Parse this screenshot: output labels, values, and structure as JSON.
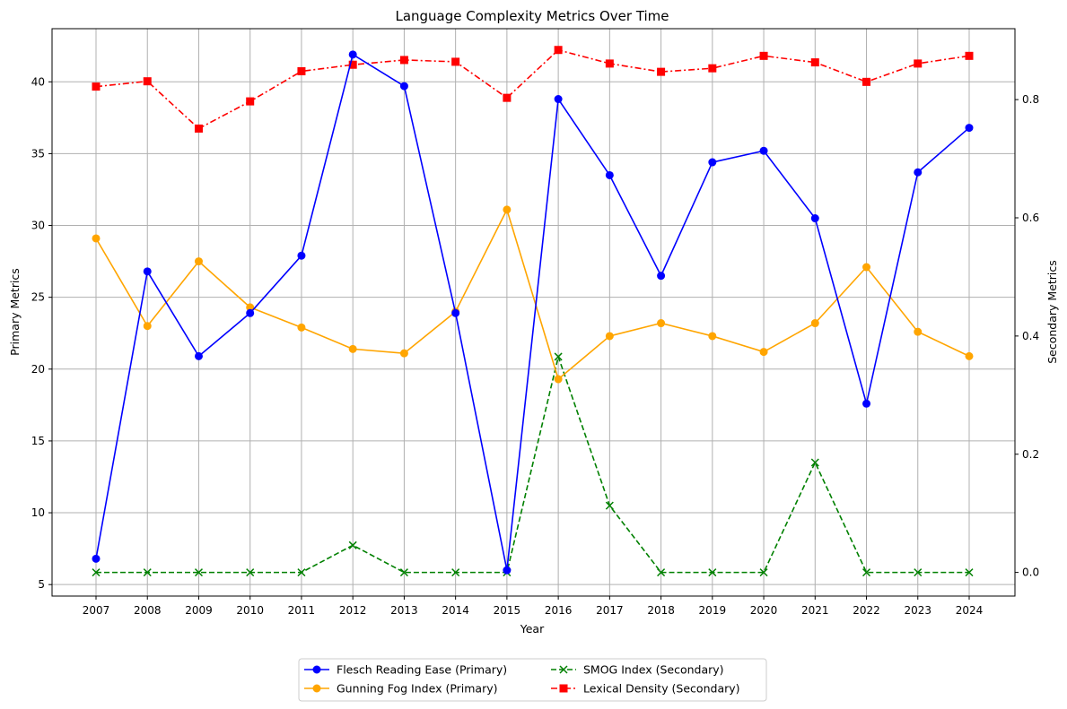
{
  "chart_data": {
    "type": "line",
    "title": "Language Complexity Metrics Over Time",
    "xlabel": "Year",
    "ylabel_left": "Primary Metrics",
    "ylabel_right": "Secondary Metrics",
    "x": [
      "2007",
      "2008",
      "2009",
      "2010",
      "2011",
      "2012",
      "2013",
      "2014",
      "2015",
      "2016",
      "2017",
      "2018",
      "2019",
      "2020",
      "2021",
      "2022",
      "2023",
      "2024"
    ],
    "ylim_left": [
      4.2,
      43.7
    ],
    "ylim_right": [
      -0.04,
      0.92
    ],
    "yticks_left": [
      "5",
      "10",
      "15",
      "20",
      "25",
      "30",
      "35",
      "40"
    ],
    "yticks_right": [
      "0.0",
      "0.2",
      "0.4",
      "0.6",
      "0.8"
    ],
    "grid": true,
    "legend_placement": "bottom-center",
    "series": [
      {
        "name": "Flesch Reading Ease (Primary)",
        "axis": "left",
        "color": "#0000ff",
        "marker": "circle",
        "line_style": "solid",
        "values": [
          6.8,
          26.8,
          20.9,
          23.9,
          27.9,
          41.9,
          39.7,
          23.9,
          6.0,
          38.8,
          33.5,
          26.5,
          34.4,
          35.2,
          30.5,
          17.6,
          33.7,
          36.8
        ]
      },
      {
        "name": "Gunning Fog Index (Primary)",
        "axis": "left",
        "color": "#ffa500",
        "marker": "circle",
        "line_style": "solid",
        "values": [
          29.1,
          23.0,
          27.5,
          24.3,
          22.9,
          21.4,
          21.1,
          24.0,
          31.1,
          19.3,
          22.3,
          23.2,
          22.3,
          21.2,
          23.2,
          27.1,
          22.6,
          20.9
        ]
      },
      {
        "name": "SMOG Index (Secondary)",
        "axis": "right",
        "color": "#008000",
        "marker": "x",
        "line_style": "dashed",
        "values": [
          0.0,
          0.0,
          0.0,
          0.0,
          0.0,
          0.046,
          0.0,
          0.0,
          0.0,
          0.365,
          0.113,
          0.0,
          0.0,
          0.0,
          0.186,
          0.0,
          0.0,
          0.0
        ]
      },
      {
        "name": "Lexical Density (Secondary)",
        "axis": "right",
        "color": "#ff0000",
        "marker": "square",
        "line_style": "dashdot",
        "values": [
          0.822,
          0.831,
          0.751,
          0.797,
          0.848,
          0.859,
          0.867,
          0.864,
          0.803,
          0.884,
          0.861,
          0.847,
          0.853,
          0.874,
          0.863,
          0.83,
          0.861,
          0.874
        ]
      }
    ]
  }
}
